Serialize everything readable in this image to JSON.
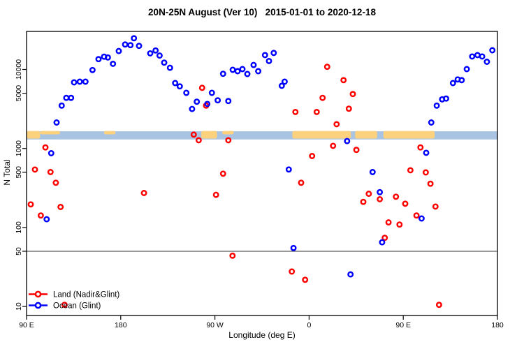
{
  "title": "20N-25N August (Ver 10)   2015-01-01 to 2020-12-18",
  "chart_data": {
    "type": "scatter",
    "title": "20N-25N August (Ver 10)   2015-01-01 to 2020-12-18",
    "xlabel": "Longitude (deg E)",
    "ylabel": "N Total",
    "x_axis": {
      "note": "longitude axis runs eastward 90E -> 180 -> 90W -> 0 -> 90E -> 180, coded 90..540",
      "range": [
        90,
        540
      ],
      "ticks": [
        {
          "value": 90,
          "label": "90 E"
        },
        {
          "value": 180,
          "label": "180"
        },
        {
          "value": 270,
          "label": "90 W"
        },
        {
          "value": 360,
          "label": "0"
        },
        {
          "value": 450,
          "label": "90 E"
        },
        {
          "value": 540,
          "label": "180"
        }
      ]
    },
    "y_axis": {
      "scale": "log",
      "range": [
        7.5,
        29000
      ],
      "ticks": [
        10,
        50,
        100,
        500,
        1000,
        5000,
        10000
      ]
    },
    "grid": "off",
    "threshold_line": 50,
    "map_strip": {
      "n_top": 1650,
      "n_bottom": 1300,
      "ocean_color": "#a9c3e3",
      "land_color": "#fcd27f",
      "land_segments": [
        {
          "from": 90,
          "to": 103,
          "part": "full"
        },
        {
          "from": 103,
          "to": 122,
          "part": "top"
        },
        {
          "from": 164,
          "to": 175,
          "part": "top"
        },
        {
          "from": 257,
          "to": 272,
          "part": "full"
        },
        {
          "from": 277,
          "to": 288,
          "part": "top"
        },
        {
          "from": 344,
          "to": 400,
          "part": "full"
        },
        {
          "from": 404,
          "to": 425,
          "part": "full"
        },
        {
          "from": 431,
          "to": 480,
          "part": "full"
        }
      ]
    },
    "legend": {
      "position": "bottom-left",
      "entries": [
        "Land (Nadir&Glint)",
        "Ocean (Glint)"
      ]
    },
    "series": [
      {
        "name": "Land (Nadir&Glint)",
        "color": "#ff0000",
        "points": [
          [
            94.0,
            196
          ],
          [
            98.0,
            541
          ],
          [
            103.6,
            142
          ],
          [
            108.0,
            1030
          ],
          [
            112.9,
            503
          ],
          [
            118.0,
            368
          ],
          [
            122.5,
            182
          ],
          [
            126.3,
            10.5
          ],
          [
            202.2,
            273
          ],
          [
            249.8,
            1500
          ],
          [
            254.5,
            1270
          ],
          [
            257.8,
            5860
          ],
          [
            261.6,
            3490
          ],
          [
            271.1,
            259
          ],
          [
            277.8,
            480
          ],
          [
            282.8,
            1270
          ],
          [
            286.8,
            44
          ],
          [
            343.5,
            27.7
          ],
          [
            346.9,
            2900
          ],
          [
            352.4,
            368
          ],
          [
            356.2,
            21.8
          ],
          [
            362.9,
            802
          ],
          [
            367.3,
            2900
          ],
          [
            372.9,
            4370
          ],
          [
            377.3,
            10800
          ],
          [
            382.9,
            1080
          ],
          [
            386.3,
            2030
          ],
          [
            392.9,
            7330
          ],
          [
            398.0,
            3190
          ],
          [
            401.8,
            4890
          ],
          [
            405.2,
            961
          ],
          [
            411.8,
            211
          ],
          [
            417.0,
            267
          ],
          [
            427.6,
            228
          ],
          [
            432.3,
            74
          ],
          [
            435.9,
            116
          ],
          [
            443.0,
            245
          ],
          [
            446.4,
            109
          ],
          [
            451.9,
            200
          ],
          [
            456.8,
            530
          ],
          [
            462.6,
            142
          ],
          [
            466.4,
            1030
          ],
          [
            471.5,
            498
          ],
          [
            476.0,
            358
          ],
          [
            480.8,
            184
          ],
          [
            484.2,
            10.5
          ]
        ]
      },
      {
        "name": "Ocean (Glint)",
        "color": "#0000ff",
        "points": [
          [
            109.2,
            127
          ],
          [
            113.6,
            870
          ],
          [
            118.7,
            2130
          ],
          [
            123.6,
            3490
          ],
          [
            128.0,
            4370
          ],
          [
            132.5,
            4370
          ],
          [
            135.4,
            6870
          ],
          [
            140.9,
            7010
          ],
          [
            146.3,
            7010
          ],
          [
            153.0,
            9840
          ],
          [
            158.8,
            13500
          ],
          [
            164.1,
            14500
          ],
          [
            167.7,
            14200
          ],
          [
            172.6,
            11800
          ],
          [
            178.1,
            17100
          ],
          [
            184.2,
            20700
          ],
          [
            189.3,
            20300
          ],
          [
            192.6,
            24800
          ],
          [
            197.5,
            19900
          ],
          [
            208.2,
            16000
          ],
          [
            213.3,
            17400
          ],
          [
            217.1,
            15000
          ],
          [
            221.5,
            12200
          ],
          [
            227.1,
            10500
          ],
          [
            232.0,
            6730
          ],
          [
            236.4,
            6110
          ],
          [
            242.7,
            5060
          ],
          [
            248.2,
            3160
          ],
          [
            252.7,
            3910
          ],
          [
            262.7,
            3660
          ],
          [
            267.1,
            5060
          ],
          [
            272.7,
            4070
          ],
          [
            277.8,
            8810
          ],
          [
            282.8,
            3990
          ],
          [
            287.0,
            9900
          ],
          [
            291.7,
            9500
          ],
          [
            296.3,
            10100
          ],
          [
            301.0,
            8770
          ],
          [
            307.0,
            11400
          ],
          [
            311.4,
            9500
          ],
          [
            317.9,
            15200
          ],
          [
            321.7,
            12800
          ],
          [
            326.2,
            16200
          ],
          [
            333.9,
            6210
          ],
          [
            336.6,
            7010
          ],
          [
            340.6,
            542
          ],
          [
            345.1,
            55
          ],
          [
            396.3,
            1240
          ],
          [
            399.6,
            25.5
          ],
          [
            420.7,
            503
          ],
          [
            427.6,
            280
          ],
          [
            429.8,
            65
          ],
          [
            467.5,
            130
          ],
          [
            471.9,
            881
          ],
          [
            476.8,
            2130
          ],
          [
            482.0,
            3490
          ],
          [
            487.1,
            4190
          ],
          [
            490.9,
            4280
          ],
          [
            497.5,
            6730
          ],
          [
            502.0,
            7480
          ],
          [
            505.8,
            7330
          ],
          [
            510.7,
            10100
          ],
          [
            515.8,
            14600
          ],
          [
            520.9,
            15200
          ],
          [
            525.4,
            14600
          ],
          [
            529.9,
            12500
          ],
          [
            535.1,
            17500
          ]
        ]
      }
    ],
    "colors": {
      "axis": "#000000",
      "threshold_line": "#333333",
      "background": "#ffffff"
    }
  }
}
